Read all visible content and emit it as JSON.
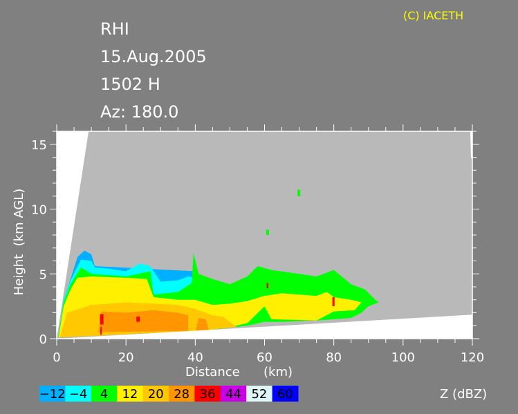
{
  "header": {
    "product": "RHI",
    "date": "15.Aug.2005",
    "time": "1502 H",
    "azimuth": "Az: 180.0",
    "copyright": "(C) IACETH"
  },
  "colors": {
    "background": "#808080",
    "no_echo": "#b9b9b9",
    "blocked": "#ffffff",
    "copyright": "#ffff00"
  },
  "chart_data": {
    "type": "heatmap",
    "title": "RHI",
    "xlabel": "Distance      (km)",
    "ylabel": "Height  (km AGL)",
    "xlim": [
      0,
      120
    ],
    "ylim": [
      0,
      16
    ],
    "x_ticks": [
      "0",
      "20",
      "40",
      "60",
      "80",
      "100",
      "120"
    ],
    "y_ticks": [
      "0",
      "5",
      "10",
      "15"
    ],
    "x_tick_values": [
      0,
      20,
      40,
      60,
      80,
      100,
      120
    ],
    "y_tick_values": [
      0,
      5,
      10,
      15
    ],
    "colorbar": {
      "label": "Z (dBZ)",
      "levels": [
        {
          "label": "−12",
          "color": "#00b0ff"
        },
        {
          "label": "−4",
          "color": "#00ffff"
        },
        {
          "label": "4",
          "color": "#00ff00"
        },
        {
          "label": "12",
          "color": "#fff000"
        },
        {
          "label": "20",
          "color": "#ffc800"
        },
        {
          "label": "28",
          "color": "#ff9600"
        },
        {
          "label": "36",
          "color": "#ff0000"
        },
        {
          "label": "44",
          "color": "#c800e6"
        },
        {
          "label": "52",
          "color": "#e0f5f5"
        },
        {
          "label": "60",
          "color": "#0000ff"
        }
      ]
    },
    "echo_regions_km": [
      {
        "dbz_min": -12,
        "points": [
          [
            0.5,
            0.2
          ],
          [
            2,
            3
          ],
          [
            4,
            4.6
          ],
          [
            6,
            6.3
          ],
          [
            8,
            6.8
          ],
          [
            10,
            6.5
          ],
          [
            11,
            5.6
          ],
          [
            40,
            5.2
          ],
          [
            40,
            0.5
          ]
        ]
      },
      {
        "dbz_min": -4,
        "points": [
          [
            0.5,
            0.2
          ],
          [
            2,
            3
          ],
          [
            4,
            4.5
          ],
          [
            7,
            6.1
          ],
          [
            10,
            6
          ],
          [
            11,
            5.5
          ],
          [
            15,
            5.4
          ],
          [
            20,
            5.2
          ],
          [
            24,
            5.8
          ],
          [
            27,
            5.6
          ],
          [
            30,
            4.4
          ],
          [
            35,
            4.5
          ],
          [
            38,
            4.8
          ],
          [
            42,
            4.6
          ],
          [
            42,
            0.6
          ]
        ]
      },
      {
        "dbz_min": 4,
        "points": [
          [
            0.5,
            0.2
          ],
          [
            2,
            2.8
          ],
          [
            4,
            4.2
          ],
          [
            7,
            5.5
          ],
          [
            10,
            5
          ],
          [
            20,
            4.8
          ],
          [
            27,
            5.2
          ],
          [
            28,
            3.4
          ],
          [
            35,
            3.6
          ],
          [
            39,
            4.3
          ],
          [
            39.5,
            6.6
          ],
          [
            41,
            5
          ],
          [
            45,
            4.6
          ],
          [
            50,
            4.2
          ],
          [
            55,
            4.8
          ],
          [
            58,
            5.6
          ],
          [
            62,
            5.3
          ],
          [
            70,
            5.0
          ],
          [
            75,
            4.8
          ],
          [
            80,
            5.3
          ],
          [
            85,
            4.2
          ],
          [
            89,
            3.8
          ],
          [
            92,
            3.0
          ],
          [
            93,
            2.8
          ],
          [
            90,
            2.5
          ],
          [
            88,
            2.0
          ],
          [
            85,
            1.6
          ],
          [
            75,
            1.4
          ],
          [
            65,
            1.3
          ],
          [
            60,
            1.3
          ],
          [
            55,
            1.0
          ],
          [
            45,
            0.7
          ],
          [
            40,
            0.6
          ],
          [
            0.5,
            0.1
          ]
        ]
      },
      {
        "dbz_min": 4,
        "points": [
          [
            69.5,
            11.0
          ],
          [
            70.3,
            11.0
          ],
          [
            70.3,
            11.5
          ],
          [
            69.5,
            11.5
          ]
        ]
      },
      {
        "dbz_min": 4,
        "points": [
          [
            60.5,
            8.0
          ],
          [
            61.3,
            8.0
          ],
          [
            61.3,
            8.4
          ],
          [
            60.5,
            8.4
          ]
        ]
      },
      {
        "dbz_min": 12,
        "points": [
          [
            0.6,
            0.2
          ],
          [
            2,
            2.5
          ],
          [
            4,
            3.8
          ],
          [
            6,
            4.7
          ],
          [
            10,
            4.8
          ],
          [
            20,
            4.7
          ],
          [
            26,
            4.6
          ],
          [
            28,
            3.2
          ],
          [
            35,
            3.0
          ],
          [
            40,
            3.0
          ],
          [
            45,
            2.6
          ],
          [
            50,
            2.7
          ],
          [
            55,
            2.9
          ],
          [
            60,
            3.3
          ],
          [
            65,
            3.5
          ],
          [
            70,
            3.4
          ],
          [
            75,
            3.3
          ],
          [
            78,
            3.6
          ],
          [
            80,
            3.2
          ],
          [
            85,
            3.0
          ],
          [
            88,
            2.8
          ],
          [
            86,
            2.2
          ],
          [
            80,
            2.1
          ],
          [
            75,
            1.4
          ],
          [
            62,
            1.5
          ],
          [
            60,
            2.5
          ],
          [
            55,
            1.2
          ],
          [
            50,
            0.9
          ],
          [
            45,
            0.7
          ],
          [
            40,
            0.6
          ],
          [
            0.6,
            0.1
          ]
        ]
      },
      {
        "dbz_min": 20,
        "points": [
          [
            1,
            0.2
          ],
          [
            3,
            2
          ],
          [
            10,
            2.6
          ],
          [
            20,
            2.8
          ],
          [
            28,
            2.7
          ],
          [
            35,
            2.6
          ],
          [
            40,
            2.3
          ],
          [
            45,
            1.8
          ],
          [
            48,
            1.7
          ],
          [
            52,
            0.9
          ],
          [
            40,
            0.6
          ],
          [
            1,
            0.1
          ]
        ]
      },
      {
        "dbz_min": 28,
        "points": [
          [
            12,
            0.5
          ],
          [
            13,
            2.1
          ],
          [
            20,
            2.0
          ],
          [
            28,
            2.2
          ],
          [
            35,
            2.0
          ],
          [
            38,
            1.8
          ],
          [
            38,
            0.6
          ]
        ]
      },
      {
        "dbz_min": 28,
        "points": [
          [
            40,
            0.5
          ],
          [
            41,
            1.6
          ],
          [
            43,
            1.5
          ],
          [
            44,
            0.6
          ]
        ]
      },
      {
        "dbz_min": 36,
        "points": [
          [
            12.5,
            1.1
          ],
          [
            13.5,
            1.1
          ],
          [
            13.5,
            1.9
          ],
          [
            12.5,
            1.9
          ]
        ]
      },
      {
        "dbz_min": 36,
        "points": [
          [
            12.6,
            0.3
          ],
          [
            13.0,
            0.3
          ],
          [
            13.0,
            0.9
          ],
          [
            12.6,
            0.9
          ]
        ]
      },
      {
        "dbz_min": 36,
        "points": [
          [
            23,
            1.3
          ],
          [
            24,
            1.3
          ],
          [
            24,
            1.7
          ],
          [
            23,
            1.7
          ]
        ]
      },
      {
        "dbz_min": 36,
        "points": [
          [
            60.6,
            3.9
          ],
          [
            61.1,
            3.9
          ],
          [
            61.1,
            4.3
          ],
          [
            60.6,
            4.3
          ]
        ]
      },
      {
        "dbz_min": 36,
        "points": [
          [
            79.6,
            2.5
          ],
          [
            80.2,
            2.5
          ],
          [
            80.2,
            3.2
          ],
          [
            79.6,
            3.2
          ]
        ]
      }
    ],
    "blocked_regions_km": [
      {
        "points": [
          [
            0,
            0
          ],
          [
            0,
            16
          ],
          [
            9.2,
            16
          ]
        ]
      },
      {
        "points": [
          [
            0,
            0
          ],
          [
            120,
            1.85
          ],
          [
            120,
            0
          ]
        ]
      },
      {
        "points": [
          [
            119.4,
            16
          ],
          [
            120,
            16
          ],
          [
            120,
            13.8
          ],
          [
            119.6,
            14
          ]
        ]
      }
    ]
  }
}
